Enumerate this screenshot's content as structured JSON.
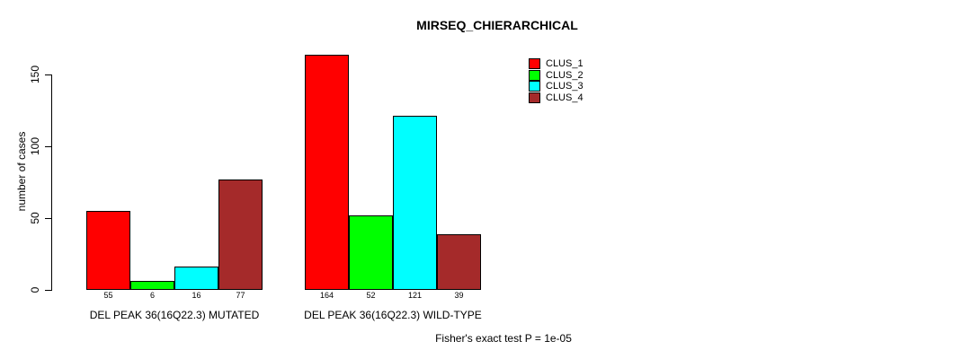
{
  "chart_data": {
    "type": "bar",
    "title": "MIRSEQ_CHIERARCHICAL",
    "ylabel": "number of cases",
    "categories": [
      "DEL PEAK 36(16Q22.3) MUTATED",
      "DEL PEAK 36(16Q22.3) WILD-TYPE"
    ],
    "series": [
      {
        "name": "CLUS_1",
        "color": "#ff0000",
        "values": [
          55,
          164
        ]
      },
      {
        "name": "CLUS_2",
        "color": "#00ff00",
        "values": [
          6,
          52
        ]
      },
      {
        "name": "CLUS_3",
        "color": "#00ffff",
        "values": [
          16,
          121
        ]
      },
      {
        "name": "CLUS_4",
        "color": "#a52a2a",
        "values": [
          77,
          39
        ]
      }
    ],
    "yticks": [
      0,
      50,
      100,
      150
    ],
    "ylim": [
      0,
      170
    ],
    "grid": false,
    "bar_value_labels_shown": true,
    "legend_position": "top-right-outside",
    "annotation": "Fisher's exact test P = 1e-05"
  }
}
